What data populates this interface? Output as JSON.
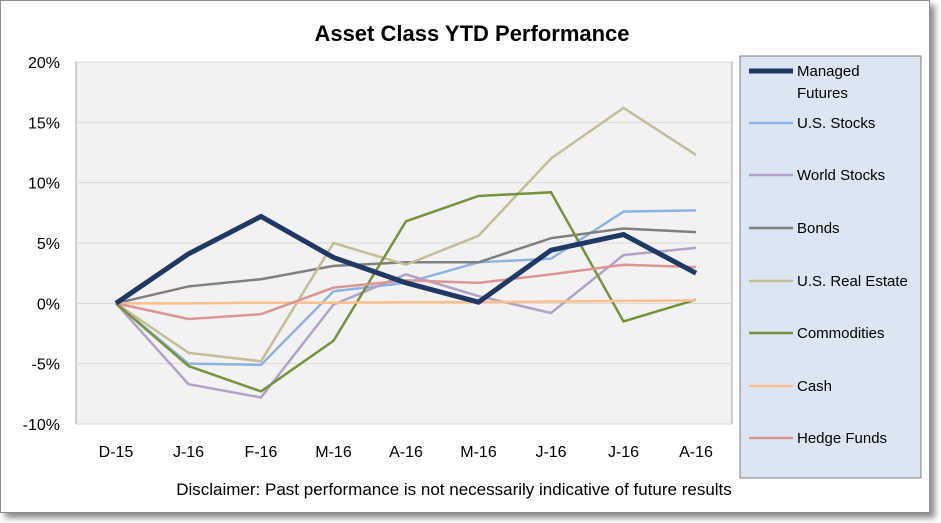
{
  "chart_data": {
    "type": "line",
    "title": "Asset Class YTD Performance",
    "xlabel": "",
    "ylabel": "",
    "categories": [
      "D-15",
      "J-16",
      "F-16",
      "M-16",
      "A-16",
      "M-16",
      "J-16",
      "J-16",
      "A-16"
    ],
    "ylim": [
      -10,
      20
    ],
    "yticks": [
      -10,
      -5,
      0,
      5,
      10,
      15,
      20
    ],
    "ytick_labels": [
      "-10%",
      "-5%",
      "0%",
      "5%",
      "10%",
      "15%",
      "20%"
    ],
    "grid": "horizontal",
    "legend_position": "right",
    "series": [
      {
        "name": "Managed Futures",
        "color": "#1f3864",
        "width": 5,
        "values": [
          0,
          4.1,
          7.2,
          3.8,
          1.7,
          0.1,
          4.4,
          5.7,
          2.5
        ]
      },
      {
        "name": "U.S. Stocks",
        "color": "#8db3e2",
        "width": 2.5,
        "values": [
          0,
          -5.0,
          -5.1,
          1.0,
          1.7,
          3.4,
          3.7,
          7.6,
          7.7
        ]
      },
      {
        "name": "World Stocks",
        "color": "#b3a2c7",
        "width": 2.5,
        "values": [
          0,
          -6.7,
          -7.8,
          -0.1,
          2.4,
          0.6,
          -0.8,
          4.0,
          4.6
        ]
      },
      {
        "name": "Bonds",
        "color": "#7f7f7f",
        "width": 2.5,
        "values": [
          0,
          1.4,
          2.0,
          3.1,
          3.4,
          3.4,
          5.4,
          6.2,
          5.9
        ]
      },
      {
        "name": "U.S. Real Estate",
        "color": "#c4bd97",
        "width": 2.5,
        "values": [
          0,
          -4.1,
          -4.8,
          5.0,
          3.2,
          5.6,
          12.0,
          16.2,
          12.3
        ]
      },
      {
        "name": "Commodities",
        "color": "#76923c",
        "width": 2.5,
        "values": [
          0,
          -5.2,
          -7.3,
          -3.1,
          6.8,
          8.9,
          9.2,
          -1.5,
          0.3
        ]
      },
      {
        "name": "Cash",
        "color": "#fac090",
        "width": 2.5,
        "values": [
          0,
          0.0,
          0.05,
          0.05,
          0.1,
          0.1,
          0.15,
          0.2,
          0.25
        ]
      },
      {
        "name": "Hedge Funds",
        "color": "#d99694",
        "width": 2.5,
        "values": [
          0,
          -1.3,
          -0.9,
          1.3,
          1.9,
          1.7,
          2.4,
          3.2,
          3.0
        ]
      }
    ],
    "legend_labels": [
      [
        "Managed",
        "Futures"
      ],
      [
        "U.S. Stocks"
      ],
      [
        "World Stocks"
      ],
      [
        "Bonds"
      ],
      [
        "U.S. Real Estate"
      ],
      [
        "Commodities"
      ],
      [
        "Cash"
      ],
      [
        "Hedge Funds"
      ]
    ],
    "footnote": "Disclaimer: Past performance is not necessarily indicative of future results",
    "colors": {
      "plot_background": "#f2f2f2",
      "legend_background": "#dce6f2",
      "gridline": "#d9d9d9"
    }
  }
}
